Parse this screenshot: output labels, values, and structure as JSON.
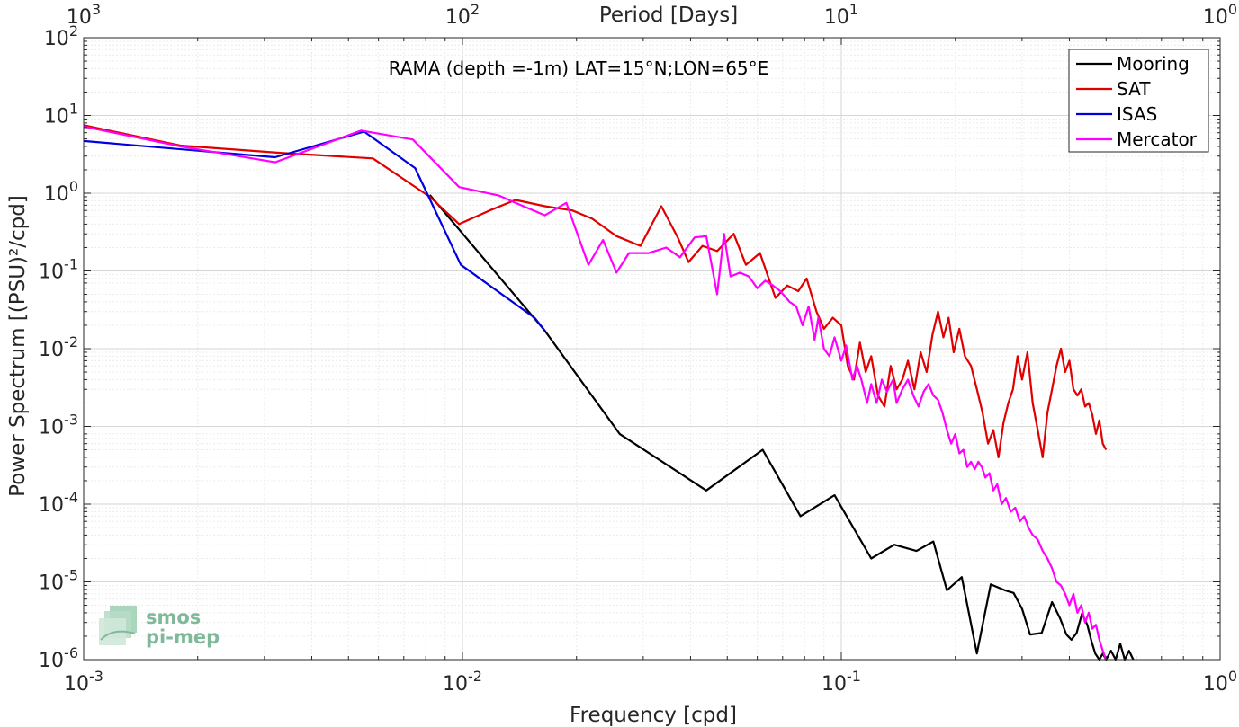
{
  "chart_data": {
    "type": "line",
    "title": "",
    "annotation": "RAMA (depth =-1m) LAT=15°N;LON=65°E",
    "xlabel": "Frequency [cpd]",
    "ylabel": "Power Spectrum [(PSU)²/cpd]",
    "top_xlabel": "Period [Days]",
    "xscale": "log",
    "yscale": "log",
    "xlim": [
      0.001,
      1
    ],
    "ylim": [
      1e-06,
      100
    ],
    "grid": true,
    "legend": "top-right",
    "x_ticks": [
      {
        "value": 0.001,
        "base": "10",
        "exp": "-3"
      },
      {
        "value": 0.01,
        "base": "10",
        "exp": "-2"
      },
      {
        "value": 0.1,
        "base": "10",
        "exp": "-1"
      },
      {
        "value": 1,
        "base": "10",
        "exp": "0"
      }
    ],
    "top_ticks": [
      {
        "value": 0.001,
        "base": "10",
        "exp": "3"
      },
      {
        "value": 0.01,
        "base": "10",
        "exp": "2"
      },
      {
        "value": 0.1,
        "base": "10",
        "exp": "1"
      },
      {
        "value": 1,
        "base": "10",
        "exp": "0"
      }
    ],
    "y_ticks": [
      {
        "value": 1e-06,
        "base": "10",
        "exp": "-6"
      },
      {
        "value": 1e-05,
        "base": "10",
        "exp": "-5"
      },
      {
        "value": 0.0001,
        "base": "10",
        "exp": "-4"
      },
      {
        "value": 0.001,
        "base": "10",
        "exp": "-3"
      },
      {
        "value": 0.01,
        "base": "10",
        "exp": "-2"
      },
      {
        "value": 0.1,
        "base": "10",
        "exp": "-1"
      },
      {
        "value": 1,
        "base": "10",
        "exp": "0"
      },
      {
        "value": 10,
        "base": "10",
        "exp": "1"
      },
      {
        "value": 100,
        "base": "10",
        "exp": "2"
      }
    ],
    "series": [
      {
        "name": "Mooring",
        "color": "#000000",
        "points": [
          [
            0.0082,
            0.95
          ],
          [
            0.0165,
            0.017
          ],
          [
            0.026,
            0.0008
          ],
          [
            0.044,
            0.00015
          ],
          [
            0.062,
            0.0005
          ],
          [
            0.078,
            7e-05
          ],
          [
            0.096,
            0.00013
          ],
          [
            0.12,
            2e-05
          ],
          [
            0.138,
            3e-05
          ],
          [
            0.158,
            2.5e-05
          ],
          [
            0.175,
            3.3e-05
          ],
          [
            0.19,
            7.8e-06
          ],
          [
            0.208,
            1.15e-05
          ],
          [
            0.228,
            1.2e-06
          ],
          [
            0.248,
            9.3e-06
          ],
          [
            0.27,
            7.8e-06
          ],
          [
            0.285,
            7.2e-06
          ],
          [
            0.3,
            4.5e-06
          ],
          [
            0.315,
            2.1e-06
          ],
          [
            0.338,
            2.2e-06
          ],
          [
            0.36,
            5.5e-06
          ],
          [
            0.378,
            3.4e-06
          ],
          [
            0.393,
            2.1e-06
          ],
          [
            0.405,
            1.8e-06
          ],
          [
            0.418,
            2.2e-06
          ],
          [
            0.432,
            3.9e-06
          ],
          [
            0.446,
            2.8e-06
          ],
          [
            0.458,
            1.7e-06
          ],
          [
            0.468,
            1.2e-06
          ],
          [
            0.48,
            9.5e-07
          ],
          [
            0.49,
            1.2e-06
          ],
          [
            0.5,
            9e-07
          ],
          [
            0.515,
            1.3e-06
          ],
          [
            0.53,
            9e-07
          ],
          [
            0.545,
            1.6e-06
          ],
          [
            0.56,
            8e-07
          ],
          [
            0.575,
            1.3e-06
          ],
          [
            0.59,
            8e-07
          ]
        ]
      },
      {
        "name": "SAT",
        "color": "#e00000",
        "points": [
          [
            0.001,
            7.5
          ],
          [
            0.0018,
            4.1
          ],
          [
            0.0033,
            3.3
          ],
          [
            0.0058,
            2.8
          ],
          [
            0.0082,
            0.9
          ],
          [
            0.0098,
            0.4
          ],
          [
            0.0118,
            0.6
          ],
          [
            0.0138,
            0.82
          ],
          [
            0.0165,
            0.68
          ],
          [
            0.0195,
            0.6
          ],
          [
            0.022,
            0.47
          ],
          [
            0.0255,
            0.28
          ],
          [
            0.0295,
            0.21
          ],
          [
            0.0335,
            0.68
          ],
          [
            0.037,
            0.27
          ],
          [
            0.0395,
            0.13
          ],
          [
            0.043,
            0.21
          ],
          [
            0.047,
            0.18
          ],
          [
            0.052,
            0.3
          ],
          [
            0.056,
            0.12
          ],
          [
            0.061,
            0.17
          ],
          [
            0.067,
            0.045
          ],
          [
            0.072,
            0.065
          ],
          [
            0.077,
            0.055
          ],
          [
            0.081,
            0.08
          ],
          [
            0.086,
            0.03
          ],
          [
            0.09,
            0.018
          ],
          [
            0.095,
            0.025
          ],
          [
            0.1,
            0.02
          ],
          [
            0.104,
            0.006
          ],
          [
            0.108,
            0.004
          ],
          [
            0.112,
            0.012
          ],
          [
            0.116,
            0.005
          ],
          [
            0.12,
            0.008
          ],
          [
            0.125,
            0.0025
          ],
          [
            0.13,
            0.0018
          ],
          [
            0.135,
            0.006
          ],
          [
            0.14,
            0.003
          ],
          [
            0.145,
            0.004
          ],
          [
            0.15,
            0.007
          ],
          [
            0.156,
            0.003
          ],
          [
            0.162,
            0.009
          ],
          [
            0.168,
            0.005
          ],
          [
            0.174,
            0.015
          ],
          [
            0.18,
            0.03
          ],
          [
            0.186,
            0.014
          ],
          [
            0.192,
            0.025
          ],
          [
            0.198,
            0.009
          ],
          [
            0.205,
            0.018
          ],
          [
            0.212,
            0.008
          ],
          [
            0.22,
            0.006
          ],
          [
            0.228,
            0.003
          ],
          [
            0.236,
            0.0015
          ],
          [
            0.244,
            0.0006
          ],
          [
            0.252,
            0.0009
          ],
          [
            0.26,
            0.0004
          ],
          [
            0.268,
            0.0011
          ],
          [
            0.276,
            0.002
          ],
          [
            0.284,
            0.003
          ],
          [
            0.292,
            0.008
          ],
          [
            0.3,
            0.004
          ],
          [
            0.31,
            0.009
          ],
          [
            0.32,
            0.002
          ],
          [
            0.33,
            0.0009
          ],
          [
            0.34,
            0.0004
          ],
          [
            0.35,
            0.0015
          ],
          [
            0.36,
            0.003
          ],
          [
            0.37,
            0.006
          ],
          [
            0.38,
            0.01
          ],
          [
            0.39,
            0.005
          ],
          [
            0.4,
            0.007
          ],
          [
            0.41,
            0.003
          ],
          [
            0.42,
            0.0025
          ],
          [
            0.43,
            0.003
          ],
          [
            0.44,
            0.0018
          ],
          [
            0.45,
            0.002
          ],
          [
            0.46,
            0.0014
          ],
          [
            0.47,
            0.0008
          ],
          [
            0.48,
            0.0012
          ],
          [
            0.49,
            0.0006
          ],
          [
            0.5,
            0.0005
          ]
        ]
      },
      {
        "name": "ISAS",
        "color": "#0000e0",
        "points": [
          [
            0.001,
            4.7
          ],
          [
            0.0032,
            2.9
          ],
          [
            0.0055,
            6.2
          ],
          [
            0.0075,
            2.1
          ],
          [
            0.0099,
            0.12
          ],
          [
            0.0155,
            0.025
          ],
          [
            0.0165,
            0.017
          ]
        ]
      },
      {
        "name": "Mercator",
        "color": "#ff00ff",
        "points": [
          [
            0.001,
            7.2
          ],
          [
            0.0018,
            4.0
          ],
          [
            0.0032,
            2.5
          ],
          [
            0.0054,
            6.4
          ],
          [
            0.0074,
            4.9
          ],
          [
            0.0098,
            1.2
          ],
          [
            0.0125,
            0.93
          ],
          [
            0.0138,
            0.75
          ],
          [
            0.0165,
            0.52
          ],
          [
            0.0188,
            0.75
          ],
          [
            0.0215,
            0.12
          ],
          [
            0.0235,
            0.25
          ],
          [
            0.0255,
            0.095
          ],
          [
            0.0275,
            0.17
          ],
          [
            0.031,
            0.17
          ],
          [
            0.0345,
            0.2
          ],
          [
            0.0375,
            0.15
          ],
          [
            0.041,
            0.27
          ],
          [
            0.044,
            0.28
          ],
          [
            0.047,
            0.05
          ],
          [
            0.049,
            0.3
          ],
          [
            0.051,
            0.085
          ],
          [
            0.054,
            0.095
          ],
          [
            0.057,
            0.085
          ],
          [
            0.06,
            0.06
          ],
          [
            0.063,
            0.075
          ],
          [
            0.066,
            0.065
          ],
          [
            0.069,
            0.055
          ],
          [
            0.073,
            0.04
          ],
          [
            0.076,
            0.035
          ],
          [
            0.079,
            0.02
          ],
          [
            0.082,
            0.035
          ],
          [
            0.085,
            0.013
          ],
          [
            0.087,
            0.025
          ],
          [
            0.09,
            0.01
          ],
          [
            0.093,
            0.008
          ],
          [
            0.096,
            0.014
          ],
          [
            0.1,
            0.007
          ],
          [
            0.103,
            0.011
          ],
          [
            0.107,
            0.004
          ],
          [
            0.11,
            0.006
          ],
          [
            0.113,
            0.004
          ],
          [
            0.117,
            0.002
          ],
          [
            0.12,
            0.0035
          ],
          [
            0.124,
            0.002
          ],
          [
            0.128,
            0.004
          ],
          [
            0.132,
            0.0028
          ],
          [
            0.137,
            0.004
          ],
          [
            0.14,
            0.002
          ],
          [
            0.145,
            0.003
          ],
          [
            0.15,
            0.004
          ],
          [
            0.155,
            0.0025
          ],
          [
            0.16,
            0.0018
          ],
          [
            0.165,
            0.0028
          ],
          [
            0.17,
            0.0035
          ],
          [
            0.175,
            0.0025
          ],
          [
            0.18,
            0.0022
          ],
          [
            0.185,
            0.0015
          ],
          [
            0.19,
            0.0009
          ],
          [
            0.195,
            0.0006
          ],
          [
            0.2,
            0.0008
          ],
          [
            0.205,
            0.00045
          ],
          [
            0.21,
            0.0005
          ],
          [
            0.215,
            0.0003
          ],
          [
            0.22,
            0.00035
          ],
          [
            0.225,
            0.00028
          ],
          [
            0.23,
            0.00035
          ],
          [
            0.235,
            0.0003
          ],
          [
            0.24,
            0.00022
          ],
          [
            0.246,
            0.00025
          ],
          [
            0.252,
            0.00015
          ],
          [
            0.258,
            0.00018
          ],
          [
            0.265,
            0.0001
          ],
          [
            0.272,
            0.00012
          ],
          [
            0.28,
            8e-05
          ],
          [
            0.288,
            9e-05
          ],
          [
            0.296,
            6e-05
          ],
          [
            0.304,
            7e-05
          ],
          [
            0.312,
            5e-05
          ],
          [
            0.32,
            4e-05
          ],
          [
            0.33,
            3.5e-05
          ],
          [
            0.34,
            2.5e-05
          ],
          [
            0.35,
            2e-05
          ],
          [
            0.36,
            1.5e-05
          ],
          [
            0.37,
            1e-05
          ],
          [
            0.38,
            9e-06
          ],
          [
            0.39,
            7e-06
          ],
          [
            0.4,
            5e-06
          ],
          [
            0.41,
            7e-06
          ],
          [
            0.42,
            4e-06
          ],
          [
            0.43,
            5e-06
          ],
          [
            0.44,
            3e-06
          ],
          [
            0.45,
            4e-06
          ],
          [
            0.46,
            2.5e-06
          ],
          [
            0.47,
            2.8e-06
          ],
          [
            0.48,
            1.8e-06
          ],
          [
            0.49,
            1.3e-06
          ],
          [
            0.5,
            1e-06
          ]
        ]
      }
    ]
  },
  "logo": {
    "line1": "smos",
    "line2": "pi-mep"
  }
}
